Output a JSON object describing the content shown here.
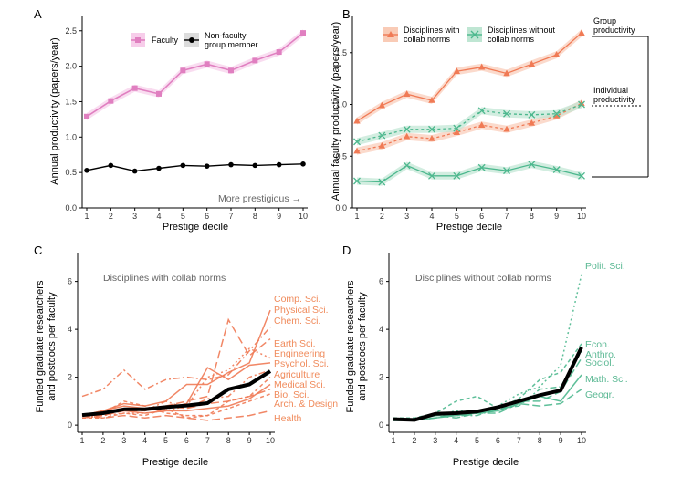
{
  "colors": {
    "faculty": "#E07FC0",
    "faculty_band": "#F7CDEA",
    "nonfaculty": "#000000",
    "collab": "#F07A55",
    "collab_band": "#F9CBB6",
    "nocollab": "#4DB88E",
    "nocollab_band": "#BFE6D3"
  },
  "chart_data": [
    {
      "panel": "A",
      "type": "line",
      "x": [
        1,
        2,
        3,
        4,
        5,
        6,
        7,
        8,
        9,
        10
      ],
      "xlabel": "Prestige decile",
      "ylabel": "Annual productivity (papers/year)",
      "ylim": [
        0,
        2.6
      ],
      "yticks": [
        "0.0",
        "0.5",
        "1.0",
        "1.5",
        "2.0",
        "2.5"
      ],
      "series": [
        {
          "name": "Faculty",
          "values": [
            1.29,
            1.51,
            1.69,
            1.61,
            1.94,
            2.03,
            1.94,
            2.08,
            2.2,
            2.47
          ],
          "band": 0.05
        },
        {
          "name": "Non-faculty group member",
          "values": [
            0.53,
            0.6,
            0.52,
            0.56,
            0.6,
            0.59,
            0.61,
            0.6,
            0.61,
            0.62
          ]
        }
      ],
      "annotation": "More prestigious →"
    },
    {
      "panel": "B",
      "type": "line",
      "x": [
        1,
        2,
        3,
        4,
        5,
        6,
        7,
        8,
        9,
        10
      ],
      "xlabel": "Prestige decile",
      "ylabel": "Annual faculty productivity (papers/year)",
      "ylim": [
        0,
        1.78
      ],
      "yticks": [
        "0.0",
        "0.5",
        "1.0",
        "1.5"
      ],
      "legend": [
        "Disciplines with collab norms",
        "Disciplines without collab norms"
      ],
      "series": [
        {
          "name": "Collab group productivity",
          "values": [
            0.84,
            0.99,
            1.1,
            1.04,
            1.32,
            1.36,
            1.3,
            1.39,
            1.48,
            1.69
          ]
        },
        {
          "name": "Collab individual productivity",
          "values": [
            0.55,
            0.6,
            0.69,
            0.67,
            0.73,
            0.8,
            0.76,
            0.82,
            0.89,
            1.01
          ]
        },
        {
          "name": "No-collab group productivity",
          "values": [
            0.64,
            0.7,
            0.76,
            0.76,
            0.77,
            0.94,
            0.91,
            0.9,
            0.91,
            1.0
          ]
        },
        {
          "name": "No-collab individual productivity",
          "values": [
            0.26,
            0.25,
            0.41,
            0.31,
            0.31,
            0.39,
            0.36,
            0.42,
            0.37,
            0.31
          ]
        }
      ],
      "bracket_labels": [
        "Group productivity",
        "Individual productivity"
      ]
    },
    {
      "panel": "C",
      "type": "line",
      "title": "Disciplines with collab norms",
      "x": [
        1,
        2,
        3,
        4,
        5,
        6,
        7,
        8,
        9,
        10
      ],
      "xlabel": "Prestige decile",
      "ylabel": "Funded graduate researchers and postdocs per faculty",
      "ylim": [
        -0.3,
        6.9
      ],
      "yticks": [
        "0",
        "2",
        "4",
        "6"
      ],
      "overall": [
        0.42,
        0.5,
        0.66,
        0.66,
        0.75,
        0.82,
        0.92,
        1.5,
        1.7,
        2.25
      ],
      "series": [
        {
          "name": "Comp. Sci.",
          "values": [
            0.4,
            0.6,
            0.9,
            0.8,
            1.0,
            1.7,
            1.7,
            2.2,
            2.6,
            4.8
          ],
          "dash": "none"
        },
        {
          "name": "Physical Sci.",
          "values": [
            0.4,
            0.5,
            0.6,
            0.7,
            0.8,
            1.0,
            1.2,
            4.4,
            2.9,
            3.6
          ],
          "dash": "9,4"
        },
        {
          "name": "Chem. Sci.",
          "values": [
            1.2,
            1.5,
            2.3,
            1.5,
            1.9,
            2.0,
            1.9,
            2.1,
            3.1,
            4.1
          ],
          "dash": "7,3,2,3"
        },
        {
          "name": "Earth Sci.",
          "values": [
            0.3,
            0.4,
            0.5,
            0.5,
            0.6,
            0.8,
            2.0,
            2.3,
            3.2,
            2.8
          ],
          "dash": "2,3"
        },
        {
          "name": "Engineering",
          "values": [
            0.4,
            0.6,
            0.8,
            0.7,
            0.7,
            0.9,
            2.4,
            1.9,
            2.5,
            2.6
          ],
          "dash": "none"
        },
        {
          "name": "Psychol. Sci.",
          "values": [
            0.3,
            0.4,
            0.7,
            0.6,
            1.0,
            0.7,
            1.1,
            1.2,
            2.0,
            2.3
          ],
          "dash": "7,3,2,3"
        },
        {
          "name": "Agriculture",
          "values": [
            0.4,
            0.5,
            1.0,
            0.8,
            0.5,
            0.4,
            0.4,
            1.0,
            1.2,
            2.0
          ],
          "dash": "4,3"
        },
        {
          "name": "Medical Sci.",
          "values": [
            0.4,
            0.5,
            0.6,
            0.5,
            0.6,
            0.6,
            0.7,
            0.8,
            1.1,
            1.7
          ],
          "dash": "none"
        },
        {
          "name": "Bio. Sci.",
          "values": [
            0.4,
            0.4,
            0.6,
            0.6,
            0.8,
            0.7,
            0.9,
            1.0,
            1.2,
            1.5
          ],
          "dash": "9,4"
        },
        {
          "name": "Arch. & Design",
          "values": [
            0.3,
            0.3,
            0.5,
            0.4,
            0.7,
            0.3,
            0.4,
            0.7,
            1.0,
            1.3
          ],
          "dash": "4,3"
        },
        {
          "name": "Health",
          "values": [
            0.4,
            0.3,
            0.4,
            0.3,
            0.4,
            0.3,
            0.2,
            0.3,
            0.4,
            0.6
          ],
          "dash": "9,4"
        }
      ]
    },
    {
      "panel": "D",
      "type": "line",
      "title": "Disciplines without collab norms",
      "x": [
        1,
        2,
        3,
        4,
        5,
        6,
        7,
        8,
        9,
        10
      ],
      "xlabel": "Prestige decile",
      "ylabel": "Funded graduate researchers and postdocs per faculty",
      "ylim": [
        -0.3,
        6.9
      ],
      "yticks": [
        "0",
        "2",
        "4",
        "6"
      ],
      "overall": [
        0.25,
        0.22,
        0.47,
        0.5,
        0.57,
        0.75,
        1.0,
        1.25,
        1.45,
        3.25
      ],
      "series": [
        {
          "name": "Polit. Sci.",
          "values": [
            0.2,
            0.2,
            0.4,
            0.6,
            0.6,
            0.8,
            1.3,
            1.6,
            2.5,
            6.3
          ],
          "dash": "2,3"
        },
        {
          "name": "Econ.",
          "values": [
            0.3,
            0.3,
            0.5,
            1.0,
            1.2,
            0.7,
            1.1,
            1.9,
            2.2,
            3.4
          ],
          "dash": "4,3"
        },
        {
          "name": "Anthro.",
          "values": [
            0.2,
            0.2,
            0.4,
            0.4,
            0.4,
            0.7,
            0.8,
            1.5,
            1.6,
            3.1
          ],
          "dash": "7,3,2,3"
        },
        {
          "name": "Sociol.",
          "values": [
            0.3,
            0.2,
            0.3,
            0.5,
            0.5,
            0.6,
            1.0,
            1.0,
            1.4,
            2.8
          ],
          "dash": "9,4"
        },
        {
          "name": "Math. Sci.",
          "values": [
            0.2,
            0.2,
            0.3,
            0.4,
            0.5,
            0.6,
            0.9,
            1.2,
            1.0,
            2.1
          ],
          "dash": "none"
        },
        {
          "name": "Geogr.",
          "values": [
            0.2,
            0.2,
            0.4,
            0.3,
            0.5,
            0.5,
            0.9,
            0.8,
            0.9,
            1.5
          ],
          "dash": "9,4"
        }
      ]
    }
  ]
}
